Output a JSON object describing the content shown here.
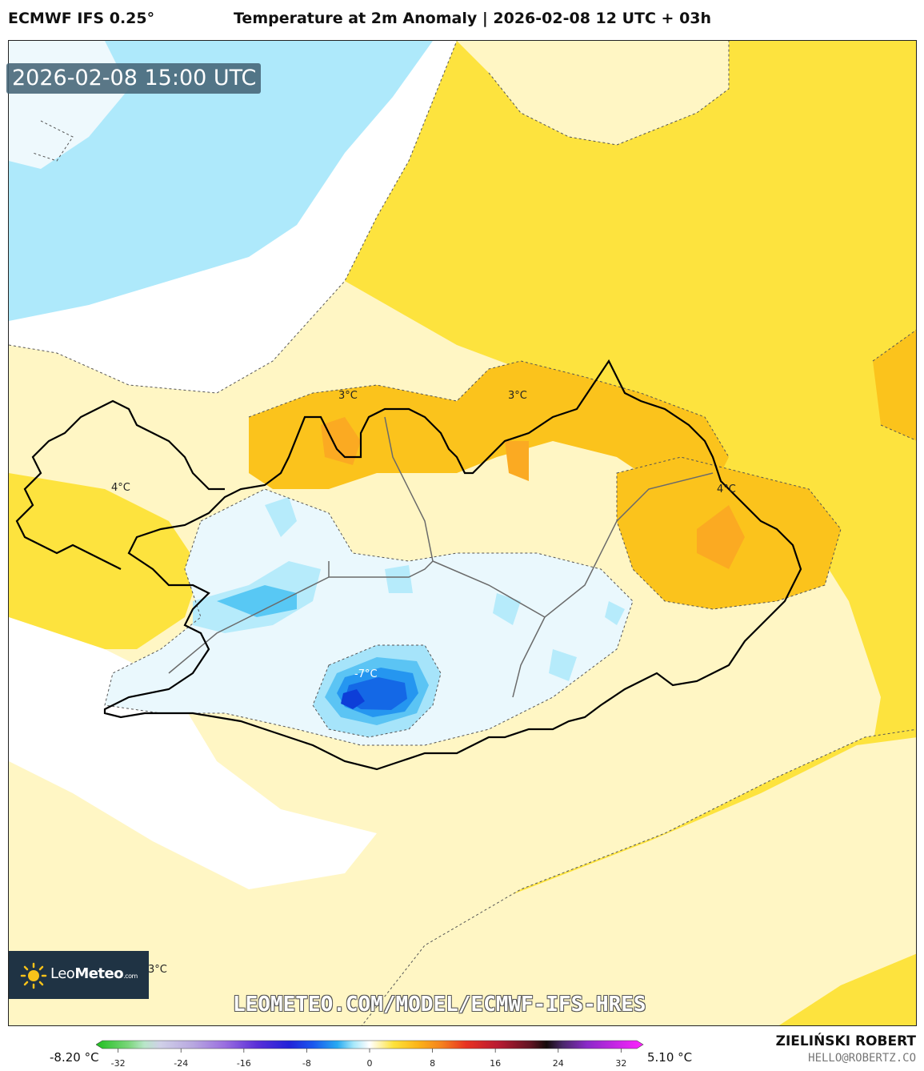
{
  "header": {
    "model": "ECMWF IFS 0.25°",
    "title": "Temperature at 2m Anomaly | 2026-02-08 12 UTC + 03h"
  },
  "map": {
    "valid_time": "2026-02-08 15:00 UTC",
    "labels": [
      "3°C",
      "3°C",
      "4°C",
      "4°C",
      "-7°C",
      "3°C"
    ]
  },
  "branding": {
    "logo": "LeoMeteo.com",
    "watermark": "LEOMETEO.COM/MODEL/ECMWF-IFS-HRES",
    "author": "ZIELIŃSKI ROBERT",
    "email": "HELLO@ROBERTZ.CO"
  },
  "colorbar": {
    "min_label": "-8.20 °C",
    "max_label": "5.10 °C",
    "ticks": [
      "-32",
      "-24",
      "-16",
      "-8",
      "0",
      "8",
      "16",
      "24",
      "32"
    ],
    "range": [
      -34,
      34
    ],
    "stops": [
      {
        "v": -34,
        "c": "#1fbf1f"
      },
      {
        "v": -30,
        "c": "#7ad67a"
      },
      {
        "v": -28,
        "c": "#b8e6c8"
      },
      {
        "v": -26,
        "c": "#d0d0e8"
      },
      {
        "v": -22,
        "c": "#b8a8e0"
      },
      {
        "v": -18,
        "c": "#9a6ee0"
      },
      {
        "v": -14,
        "c": "#5a2fd8"
      },
      {
        "v": -10,
        "c": "#2222d8"
      },
      {
        "v": -7,
        "c": "#1a58ee"
      },
      {
        "v": -4,
        "c": "#28aaf2"
      },
      {
        "v": -2,
        "c": "#a6e8fa"
      },
      {
        "v": -0.5,
        "c": "#eaf8fd"
      },
      {
        "v": 0,
        "c": "#ffffff"
      },
      {
        "v": 1,
        "c": "#fff6c0"
      },
      {
        "v": 3,
        "c": "#fde23a"
      },
      {
        "v": 6,
        "c": "#fbb418"
      },
      {
        "v": 9,
        "c": "#f5801e"
      },
      {
        "v": 12,
        "c": "#e83222"
      },
      {
        "v": 16,
        "c": "#b81a32"
      },
      {
        "v": 20,
        "c": "#601422"
      },
      {
        "v": 22,
        "c": "#140a0a"
      },
      {
        "v": 24,
        "c": "#4a286a"
      },
      {
        "v": 27,
        "c": "#8a2ac8"
      },
      {
        "v": 34,
        "c": "#ff22ff"
      }
    ]
  }
}
